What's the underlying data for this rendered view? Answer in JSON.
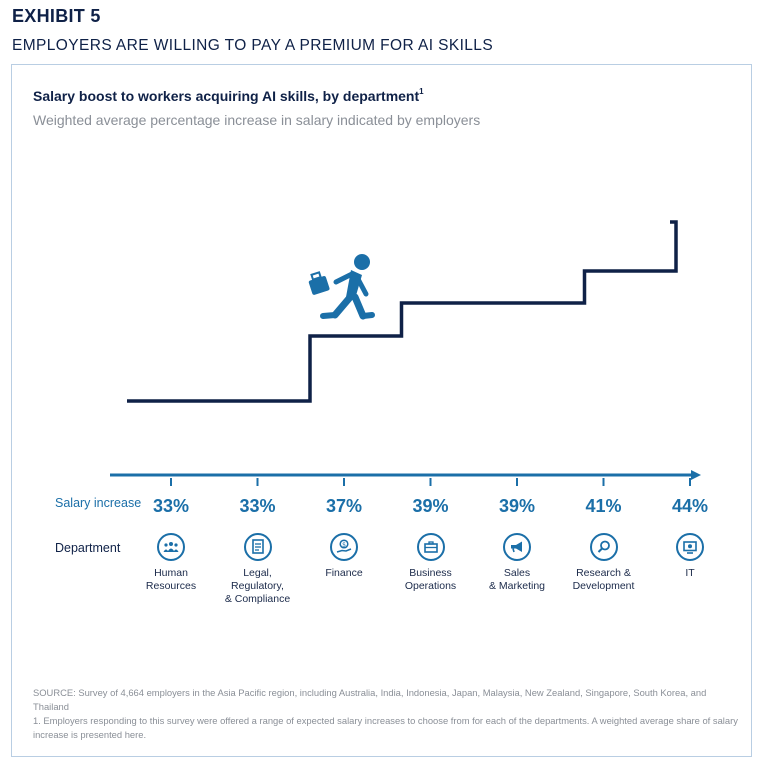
{
  "header": {
    "exhibit": "EXHIBIT 5",
    "headline": "EMPLOYERS ARE WILLING TO PAY A PREMIUM FOR AI SKILLS"
  },
  "chart_data": {
    "type": "bar",
    "title": "Salary boost to workers acquiring AI skills, by department",
    "title_footnote_mark": "1",
    "subtitle": "Weighted average percentage increase in salary indicated by employers",
    "row_labels": {
      "value_row": "Salary increase",
      "category_row": "Department"
    },
    "categories": [
      "Human Resources",
      "Legal, Regulatory, & Compliance",
      "Finance",
      "Business Operations",
      "Sales & Marketing",
      "Research & Development",
      "IT"
    ],
    "category_display": [
      "Human\nResources",
      "Legal,\nRegulatory,\n& Compliance",
      "Finance",
      "Business\nOperations",
      "Sales\n& Marketing",
      "Research &\nDevelopment",
      "IT"
    ],
    "values": [
      33,
      33,
      37,
      39,
      39,
      41,
      44
    ],
    "value_labels": [
      "33%",
      "33%",
      "37%",
      "39%",
      "39%",
      "41%",
      "44%"
    ],
    "icons": [
      "people-icon",
      "document-icon",
      "money-hand-icon",
      "briefcase-icon",
      "megaphone-icon",
      "magnifier-icon",
      "computer-icon"
    ],
    "illustration": "climbing-worker-icon",
    "colors": {
      "accent": "#1b6fa8",
      "stair": "#0f2147"
    }
  },
  "notes": {
    "source": "SOURCE: Survey of 4,664 employers in the Asia Pacific region, including Australia, India, Indonesia, Japan, Malaysia, New Zealand, Singapore, South Korea, and Thailand",
    "footnote": "1.  Employers responding to this survey were offered a range of expected salary increases to choose from for each of the departments. A weighted average share of salary increase is presented here."
  }
}
